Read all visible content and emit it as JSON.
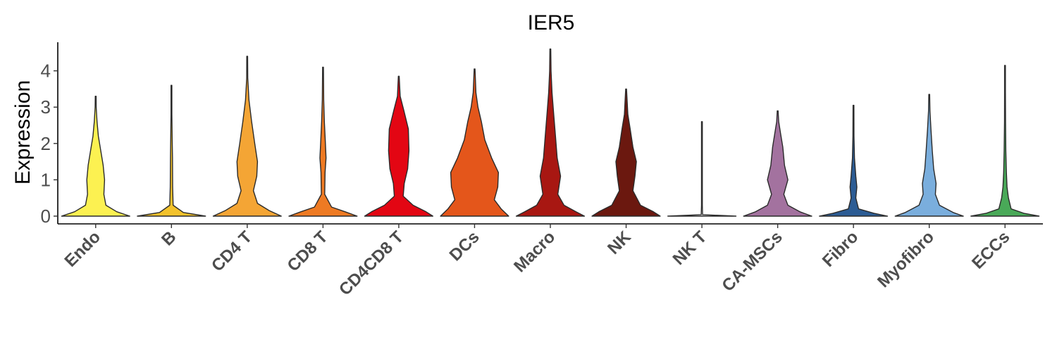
{
  "chart_data": {
    "type": "violin",
    "title": "IER5",
    "xlabel": "",
    "ylabel": "Expression",
    "ylim": [
      -0.2,
      4.8
    ],
    "yticks": [
      0,
      1,
      2,
      3,
      4
    ],
    "grid": false,
    "legend": "none",
    "categories": [
      "Endo",
      "B",
      "CD4 T",
      "CD8 T",
      "CD4CD8 T",
      "DCs",
      "Macro",
      "NK",
      "NK T",
      "CA-MSCs",
      "Fibro",
      "Myofibro",
      "ECCs"
    ],
    "colors": [
      "#FCF151",
      "#F3C22C",
      "#F4A535",
      "#EE7A23",
      "#E30613",
      "#E4561B",
      "#A81712",
      "#6B180F",
      "#FFFFFF",
      "#A3729F",
      "#2C5C94",
      "#7AAEDD",
      "#49A958"
    ],
    "series": [
      {
        "name": "Endo",
        "max": 3.3,
        "density": [
          [
            0,
            1.0
          ],
          [
            0.12,
            0.62
          ],
          [
            0.3,
            0.3
          ],
          [
            0.6,
            0.24
          ],
          [
            1.0,
            0.26
          ],
          [
            1.4,
            0.22
          ],
          [
            1.8,
            0.15
          ],
          [
            2.2,
            0.08
          ],
          [
            2.6,
            0.04
          ],
          [
            3.0,
            0.015
          ],
          [
            3.3,
            0.0
          ]
        ]
      },
      {
        "name": "B",
        "max": 3.6,
        "density": [
          [
            0,
            1.0
          ],
          [
            0.1,
            0.35
          ],
          [
            0.3,
            0.05
          ],
          [
            0.8,
            0.035
          ],
          [
            1.6,
            0.03
          ],
          [
            2.2,
            0.02
          ],
          [
            2.8,
            0.01
          ],
          [
            3.6,
            0.0
          ]
        ]
      },
      {
        "name": "CD4 T",
        "max": 4.4,
        "density": [
          [
            0,
            1.0
          ],
          [
            0.15,
            0.65
          ],
          [
            0.35,
            0.3
          ],
          [
            0.7,
            0.18
          ],
          [
            1.1,
            0.28
          ],
          [
            1.5,
            0.3
          ],
          [
            2.0,
            0.22
          ],
          [
            2.6,
            0.13
          ],
          [
            3.2,
            0.05
          ],
          [
            3.8,
            0.015
          ],
          [
            4.4,
            0.0
          ]
        ]
      },
      {
        "name": "CD8 T",
        "max": 4.1,
        "density": [
          [
            0,
            1.0
          ],
          [
            0.12,
            0.65
          ],
          [
            0.25,
            0.25
          ],
          [
            0.6,
            0.05
          ],
          [
            1.2,
            0.06
          ],
          [
            1.6,
            0.09
          ],
          [
            2.0,
            0.07
          ],
          [
            2.6,
            0.04
          ],
          [
            3.2,
            0.02
          ],
          [
            4.1,
            0.0
          ]
        ]
      },
      {
        "name": "CD4CD8 T",
        "max": 3.85,
        "density": [
          [
            0,
            1.0
          ],
          [
            0.12,
            0.8
          ],
          [
            0.3,
            0.42
          ],
          [
            0.55,
            0.13
          ],
          [
            0.9,
            0.16
          ],
          [
            1.3,
            0.26
          ],
          [
            1.8,
            0.3
          ],
          [
            2.4,
            0.28
          ],
          [
            2.9,
            0.15
          ],
          [
            3.3,
            0.04
          ],
          [
            3.85,
            0.0
          ]
        ]
      },
      {
        "name": "DCs",
        "max": 4.05,
        "density": [
          [
            0,
            1.0
          ],
          [
            0.2,
            0.78
          ],
          [
            0.45,
            0.58
          ],
          [
            0.8,
            0.68
          ],
          [
            1.2,
            0.7
          ],
          [
            1.6,
            0.5
          ],
          [
            2.1,
            0.3
          ],
          [
            2.6,
            0.2
          ],
          [
            3.0,
            0.1
          ],
          [
            3.4,
            0.04
          ],
          [
            4.05,
            0.0
          ]
        ]
      },
      {
        "name": "Macro",
        "max": 4.6,
        "density": [
          [
            0,
            1.0
          ],
          [
            0.12,
            0.75
          ],
          [
            0.3,
            0.4
          ],
          [
            0.6,
            0.22
          ],
          [
            1.1,
            0.3
          ],
          [
            1.6,
            0.2
          ],
          [
            2.2,
            0.15
          ],
          [
            2.8,
            0.1
          ],
          [
            3.4,
            0.05
          ],
          [
            4.0,
            0.02
          ],
          [
            4.6,
            0.0
          ]
        ]
      },
      {
        "name": "NK",
        "max": 3.5,
        "density": [
          [
            0,
            1.0
          ],
          [
            0.12,
            0.8
          ],
          [
            0.3,
            0.42
          ],
          [
            0.7,
            0.2
          ],
          [
            1.1,
            0.26
          ],
          [
            1.5,
            0.3
          ],
          [
            1.9,
            0.2
          ],
          [
            2.4,
            0.12
          ],
          [
            2.8,
            0.05
          ],
          [
            3.5,
            0.0
          ]
        ]
      },
      {
        "name": "NK T",
        "max": 2.6,
        "density": [
          [
            0,
            1.0
          ],
          [
            0.04,
            0.02
          ],
          [
            0.3,
            0.012
          ],
          [
            2.6,
            0.006
          ]
        ]
      },
      {
        "name": "CA-MSCs",
        "max": 2.9,
        "density": [
          [
            0,
            1.0
          ],
          [
            0.12,
            0.65
          ],
          [
            0.3,
            0.3
          ],
          [
            0.6,
            0.18
          ],
          [
            1.0,
            0.3
          ],
          [
            1.4,
            0.2
          ],
          [
            1.9,
            0.15
          ],
          [
            2.3,
            0.08
          ],
          [
            2.6,
            0.03
          ],
          [
            2.9,
            0.0
          ]
        ]
      },
      {
        "name": "Fibro",
        "max": 3.05,
        "density": [
          [
            0,
            1.0
          ],
          [
            0.08,
            0.6
          ],
          [
            0.2,
            0.15
          ],
          [
            0.5,
            0.07
          ],
          [
            0.8,
            0.1
          ],
          [
            1.1,
            0.07
          ],
          [
            1.6,
            0.03
          ],
          [
            2.2,
            0.015
          ],
          [
            3.05,
            0.0
          ]
        ]
      },
      {
        "name": "Myofibro",
        "max": 3.35,
        "density": [
          [
            0,
            1.0
          ],
          [
            0.1,
            0.7
          ],
          [
            0.3,
            0.3
          ],
          [
            0.6,
            0.18
          ],
          [
            0.9,
            0.2
          ],
          [
            1.3,
            0.13
          ],
          [
            1.8,
            0.09
          ],
          [
            2.4,
            0.05
          ],
          [
            2.9,
            0.02
          ],
          [
            3.35,
            0.0
          ]
        ]
      },
      {
        "name": "ECCs",
        "max": 4.15,
        "density": [
          [
            0,
            1.0
          ],
          [
            0.08,
            0.55
          ],
          [
            0.2,
            0.18
          ],
          [
            0.5,
            0.1
          ],
          [
            0.8,
            0.06
          ],
          [
            1.2,
            0.04
          ],
          [
            1.8,
            0.025
          ],
          [
            2.6,
            0.015
          ],
          [
            3.4,
            0.008
          ],
          [
            4.15,
            0.0
          ]
        ]
      }
    ]
  }
}
